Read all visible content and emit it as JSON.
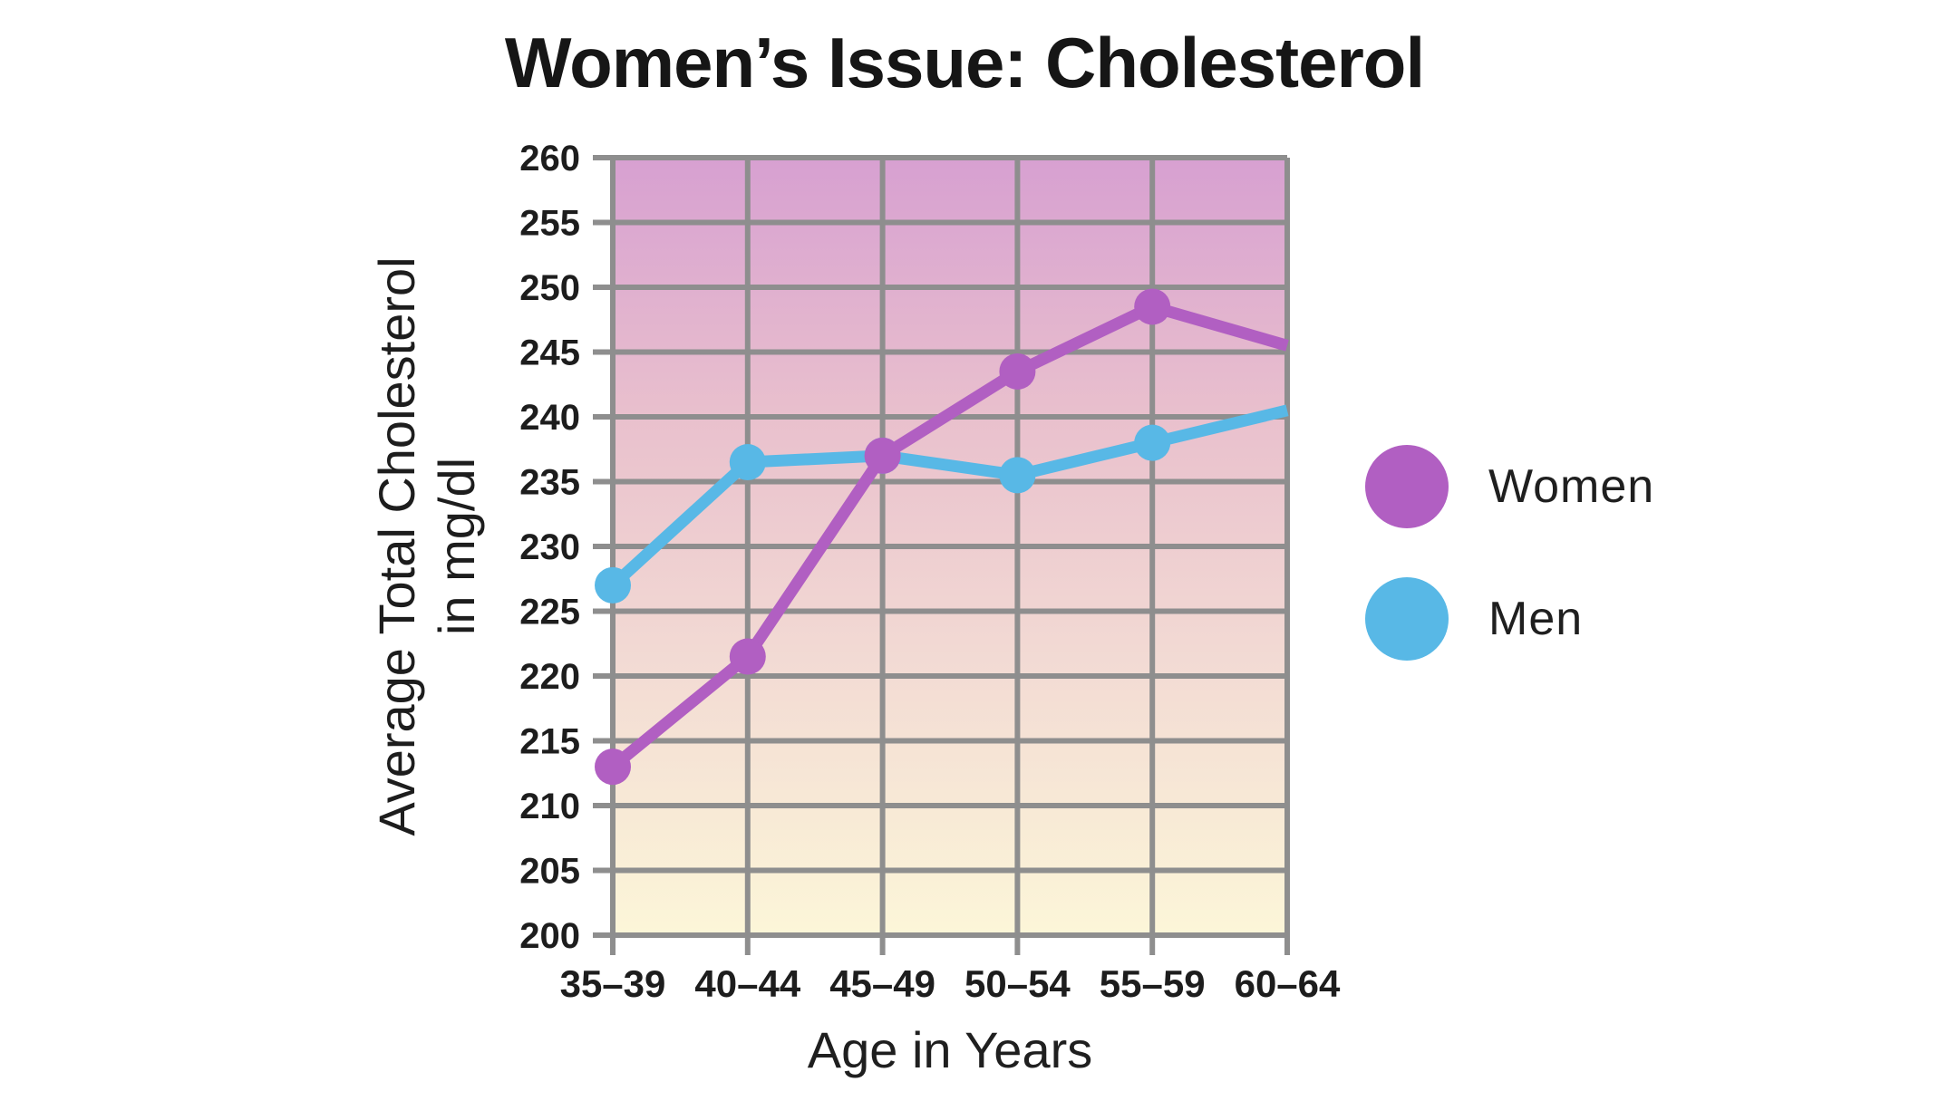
{
  "chart_data": {
    "type": "line",
    "title": "Women’s Issue: Cholesterol",
    "xlabel": "Age in Years",
    "ylabel": "Average Total Cholesterol in mg/dl",
    "ylabel_lines": [
      "Average Total Cholesterol",
      "in mg/dl"
    ],
    "categories": [
      "35–39",
      "40–44",
      "45–49",
      "50–54",
      "55–59",
      "60–64"
    ],
    "series": [
      {
        "name": "Women",
        "color": "#b15fc2",
        "values": [
          213,
          221.5,
          237,
          243.5,
          248.5,
          245.5
        ]
      },
      {
        "name": "Men",
        "color": "#58b8e6",
        "values": [
          227,
          236.5,
          237,
          235.5,
          238,
          240.5
        ]
      }
    ],
    "ylim": [
      200,
      260
    ],
    "yticks": [
      200,
      205,
      210,
      215,
      220,
      225,
      230,
      235,
      240,
      245,
      250,
      255,
      260
    ],
    "grid": true,
    "legend_position": "right",
    "last_point_has_marker": false,
    "colors": {
      "grid": "#8e8e8e",
      "text": "#1d1d1d",
      "page_bg": "#ffffff",
      "plot_bg_gradient": [
        "#d7a0d1",
        "#e9c0cd",
        "#f3dcd4",
        "#fcf6d8"
      ]
    }
  }
}
